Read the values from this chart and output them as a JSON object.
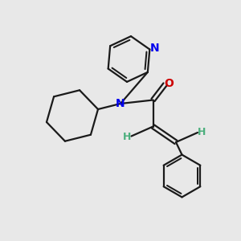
{
  "background_color": "#E8E8E8",
  "bond_color": "#1A1A1A",
  "nitrogen_color": "#0000EE",
  "oxygen_color": "#CC0000",
  "h_color": "#4CAF7D",
  "line_width": 1.6,
  "figsize": [
    3.0,
    3.0
  ],
  "dpi": 100,
  "xlim": [
    0,
    10
  ],
  "ylim": [
    0,
    10
  ]
}
